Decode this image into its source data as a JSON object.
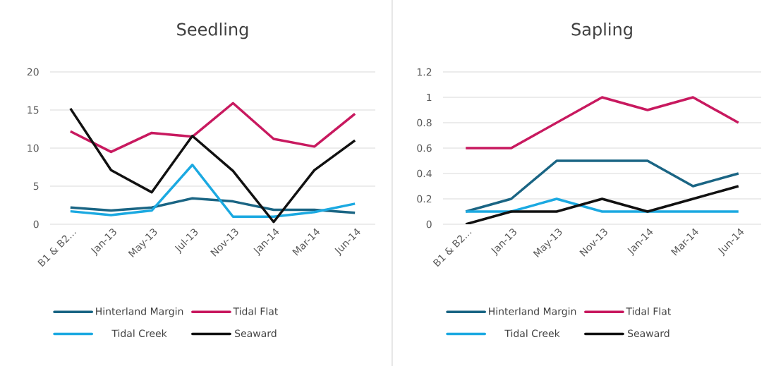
{
  "chart_data": [
    {
      "type": "line",
      "title": "Seedling",
      "categories": [
        "B1 & B2...",
        "Jan-13",
        "May-13",
        "Jul-13",
        "Nov-13",
        "Jan-14",
        "Mar-14",
        "Jun-14"
      ],
      "ylim": [
        0,
        20
      ],
      "yticks": [
        0,
        5,
        10,
        15,
        20
      ],
      "grid": "y",
      "legend": "bottom",
      "series": [
        {
          "name": "Hinterland Margin",
          "color": "#1a6584",
          "values": [
            2.2,
            1.8,
            2.2,
            3.4,
            3.0,
            1.9,
            1.9,
            1.5
          ]
        },
        {
          "name": "Tidal Flat",
          "color": "#c8195f",
          "values": [
            12.2,
            9.5,
            12.0,
            11.5,
            15.9,
            11.2,
            10.2,
            14.5
          ]
        },
        {
          "name": "Tidal Creek",
          "color": "#1ba9e1",
          "values": [
            1.7,
            1.2,
            1.8,
            7.8,
            1.0,
            1.0,
            1.6,
            2.7
          ]
        },
        {
          "name": "Seaward",
          "color": "#111111",
          "values": [
            15.2,
            7.1,
            4.2,
            11.6,
            7.0,
            0.3,
            7.1,
            11.0
          ]
        }
      ]
    },
    {
      "type": "line",
      "title": "Sapling",
      "categories": [
        "B1 & B2...",
        "Jan-13",
        "May-13",
        "Nov-13",
        "Jan-14",
        "Mar-14",
        "Jun-14"
      ],
      "ylim": [
        0,
        1.2
      ],
      "yticks": [
        0,
        0.2,
        0.4,
        0.6,
        0.8,
        1,
        1.2
      ],
      "grid": "y",
      "legend": "bottom",
      "series": [
        {
          "name": "Hinterland Margin",
          "color": "#1a6584",
          "values": [
            0.1,
            0.2,
            0.5,
            0.5,
            0.5,
            0.3,
            0.4
          ]
        },
        {
          "name": "Tidal Flat",
          "color": "#c8195f",
          "values": [
            0.6,
            0.6,
            0.8,
            1.0,
            0.9,
            1.0,
            0.8
          ]
        },
        {
          "name": "Tidal Creek",
          "color": "#1ba9e1",
          "values": [
            0.1,
            0.1,
            0.2,
            0.1,
            0.1,
            0.1,
            0.1
          ]
        },
        {
          "name": "Seaward",
          "color": "#111111",
          "values": [
            0.0,
            0.1,
            0.1,
            0.2,
            0.1,
            0.2,
            0.3
          ]
        }
      ]
    }
  ]
}
